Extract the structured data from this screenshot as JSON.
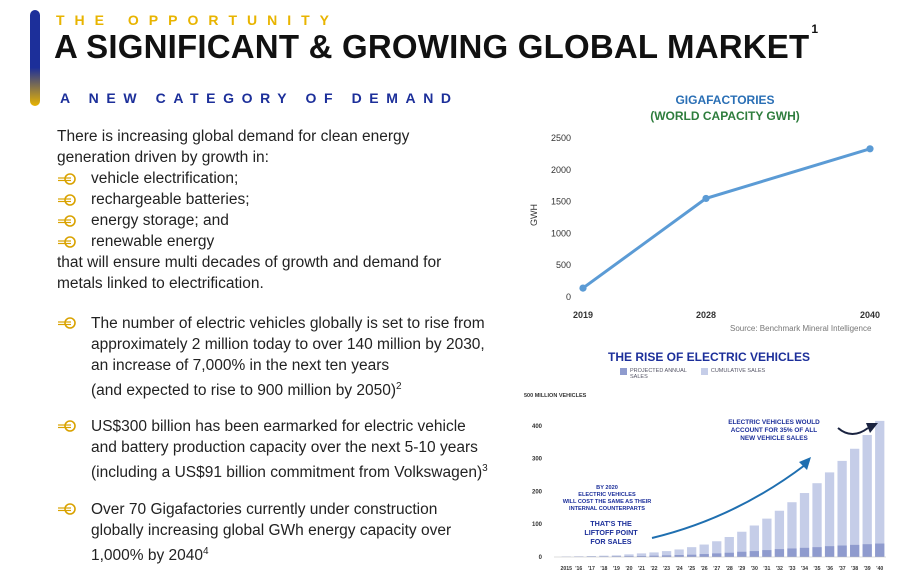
{
  "header": {
    "eyebrow": "THE OPPORTUNITY",
    "title": "A SIGNIFICANT & GROWING GLOBAL MARKET",
    "title_footnote": "1",
    "subheading": "A NEW CATEGORY OF DEMAND"
  },
  "intro": {
    "lead": [
      "There is increasing global demand for clean energy",
      "generation driven by growth in:"
    ],
    "items": [
      "vehicle electrification;",
      "rechargeable batteries;",
      "energy storage; and",
      "renewable energy"
    ],
    "tail": [
      "that will ensure multi decades of growth and demand for",
      "metals linked to electrification."
    ]
  },
  "points": [
    {
      "lines": [
        "The number of electric vehicles globally is set to rise from",
        "approximately 2 million today to over 140 million by 2030,",
        "an increase of 7,000% in the next ten years",
        "(and expected to rise to 900 million by 2050)"
      ],
      "footnote": "2"
    },
    {
      "lines": [
        "US$300 billion has been earmarked for electric vehicle",
        "and battery production capacity over the next  5-10 years",
        "(including a US$91 billion commitment from Volkswagen)"
      ],
      "footnote": "3"
    },
    {
      "lines": [
        "Over 70 Gigafactories currently under construction",
        "globally increasing global GWh energy capacity over",
        "1,000% by 2040"
      ],
      "footnote": "4"
    }
  ],
  "colors": {
    "navy": "#1c2f9a",
    "gold": "#e8b400",
    "line_blue": "#5b9bd5",
    "bar_light": "#c5cde8",
    "bar_dark": "#8f9bce",
    "arrow_blue": "#1f6fb0"
  },
  "gigafactories": {
    "title_line1": "GIGAFACTORIES",
    "title_line2": "(WORLD CAPACITY GWH)",
    "source": "Source: Benchmark Mineral Intelligence"
  },
  "ev": {
    "title": "THE RISE OF ELECTRIC VEHICLES",
    "legend": [
      {
        "label": [
          "PROJECTED ANNUAL",
          "SALES"
        ],
        "color": "#8f9bce"
      },
      {
        "label": [
          "CUMULATIVE SALES"
        ],
        "color": "#c5cde8"
      }
    ],
    "annotations": {
      "top": [
        "ELECTRIC VEHICLES WOULD",
        "ACCOUNT FOR 35% OF ALL",
        "NEW VEHICLE SALES"
      ],
      "mid": [
        "BY 2020",
        "ELECTRIC VEHICLES",
        "WILL COST THE SAME AS THEIR",
        "INTERNAL COUNTERPARTS"
      ],
      "low": [
        "THAT'S THE",
        "LIFTOFF POINT",
        "FOR SALES"
      ]
    }
  },
  "chart_data": [
    {
      "type": "line",
      "title": "GIGAFACTORIES (WORLD CAPACITY GWH)",
      "xlabel": "",
      "ylabel": "GWH",
      "x": [
        2019,
        2028,
        2040
      ],
      "series": [
        {
          "values": [
            140,
            1550,
            2330
          ]
        }
      ],
      "xticks": [
        "2019",
        "2028",
        "2040"
      ],
      "yticks": [
        0,
        500,
        1000,
        1500,
        2000,
        2500
      ],
      "ylim": [
        0,
        2500
      ],
      "grid": false
    },
    {
      "type": "bar",
      "title": "THE RISE OF ELECTRIC VEHICLES",
      "ylabel": "500 MILLION VEHICLES",
      "categories": [
        "2015",
        "'16",
        "'17",
        "'18",
        "'19",
        "'20",
        "'21",
        "'22",
        "'23",
        "'24",
        "'25",
        "'26",
        "'27",
        "'28",
        "'29",
        "'30",
        "'31",
        "'32",
        "'33",
        "'34",
        "'35",
        "'36",
        "'37",
        "'38",
        "'39",
        "'40"
      ],
      "yticks": [
        0,
        100,
        200,
        300,
        400
      ],
      "ylim": [
        0,
        500
      ],
      "series": [
        {
          "name": "CUMULATIVE SALES",
          "values": [
            1,
            2,
            3,
            4,
            5,
            8,
            11,
            14,
            18,
            23,
            30,
            38,
            48,
            61,
            77,
            96,
            117,
            141,
            167,
            195,
            225,
            258,
            293,
            330,
            372,
            415
          ]
        },
        {
          "name": "PROJECTED ANNUAL SALES",
          "values": [
            0.5,
            0.8,
            1,
            1.5,
            2,
            2.5,
            3,
            4,
            5,
            6,
            7,
            9,
            11,
            13,
            16,
            18,
            21,
            24,
            26,
            28,
            30,
            33,
            35,
            37,
            39,
            41
          ]
        }
      ],
      "grid": false
    }
  ]
}
